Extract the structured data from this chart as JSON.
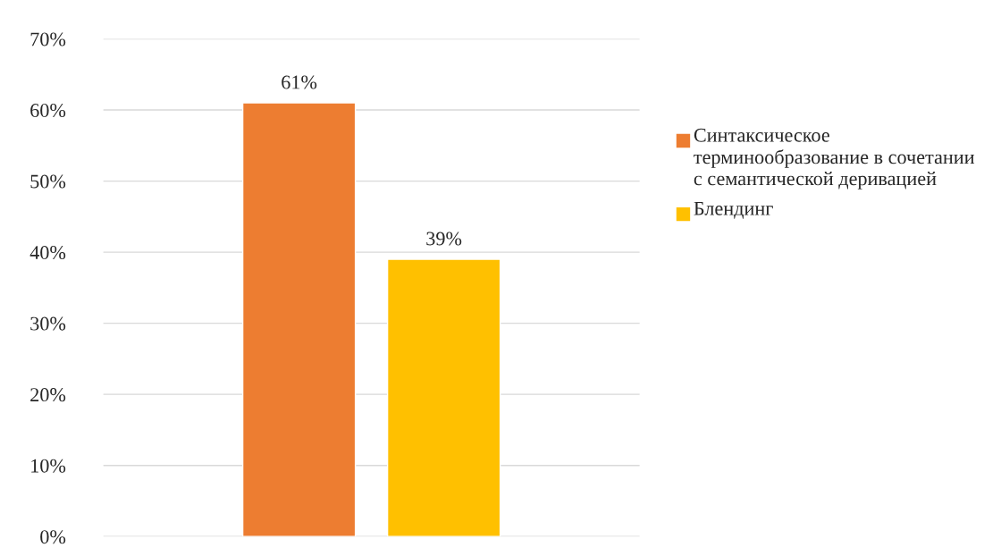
{
  "chart_data": {
    "type": "bar",
    "categories": [
      null
    ],
    "series": [
      {
        "name": "Синтаксическое терминообразование в сочетании с семантической деривацией",
        "color": "#ed7d31",
        "values": [
          61
        ],
        "value_labels": [
          "61%"
        ]
      },
      {
        "name": "Блендинг",
        "color": "#ffc000",
        "values": [
          39
        ],
        "value_labels": [
          "39%"
        ]
      }
    ],
    "ylim": [
      0,
      70
    ],
    "yticks": [
      {
        "value": 0,
        "label": "0%"
      },
      {
        "value": 10,
        "label": "10%"
      },
      {
        "value": 20,
        "label": "20%"
      },
      {
        "value": 30,
        "label": "30%"
      },
      {
        "value": 40,
        "label": "40%"
      },
      {
        "value": 50,
        "label": "50%"
      },
      {
        "value": 60,
        "label": "60%"
      },
      {
        "value": 70,
        "label": "70%"
      }
    ],
    "grid": "y",
    "legend": "right"
  }
}
